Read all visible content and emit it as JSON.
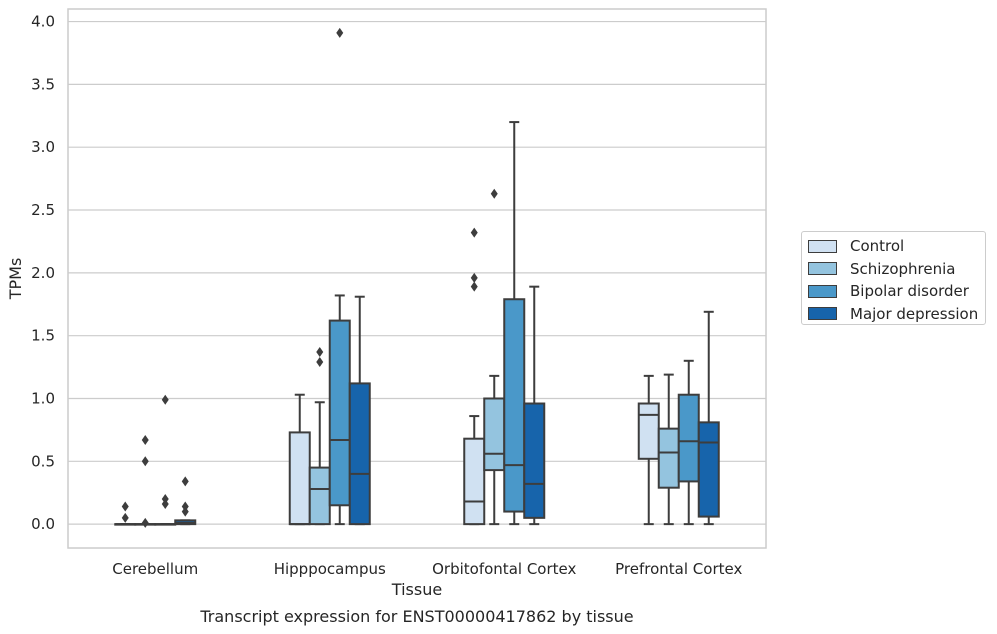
{
  "chart_data": {
    "type": "box",
    "caption": "Transcript expression for ENST00000417862 by tissue",
    "xlabel": "Tissue",
    "ylabel": "TPMs",
    "ylim": [
      -0.19,
      4.1
    ],
    "yticks": [
      "0.0",
      "0.5",
      "1.0",
      "1.5",
      "2.0",
      "2.5",
      "3.0",
      "3.5",
      "4.0"
    ],
    "categories": [
      "Cerebellum",
      "Hipppocampus",
      "Orbitofontal Cortex",
      "Prefrontal Cortex"
    ],
    "grid": true,
    "legend_position": "right",
    "series": [
      {
        "name": "Control",
        "color": "#d0e1f2",
        "boxes": [
          {
            "q1": 0,
            "median": 0,
            "q3": 0,
            "whisker_low": 0,
            "whisker_high": 0,
            "outliers": [
              0.14,
              0.05
            ]
          },
          {
            "q1": 0,
            "median": 0,
            "q3": 0.73,
            "whisker_low": 0,
            "whisker_high": 1.03,
            "outliers": []
          },
          {
            "q1": 0,
            "median": 0.18,
            "q3": 0.68,
            "whisker_low": 0,
            "whisker_high": 0.86,
            "outliers": [
              1.89,
              1.96,
              2.32
            ]
          },
          {
            "q1": 0.52,
            "median": 0.87,
            "q3": 0.96,
            "whisker_low": 0,
            "whisker_high": 1.18,
            "outliers": []
          }
        ]
      },
      {
        "name": "Schizophrenia",
        "color": "#94c4df",
        "boxes": [
          {
            "q1": 0,
            "median": 0,
            "q3": 0,
            "whisker_low": 0,
            "whisker_high": 0,
            "outliers": [
              0.67,
              0.5,
              0.01
            ]
          },
          {
            "q1": 0,
            "median": 0.28,
            "q3": 0.45,
            "whisker_low": 0,
            "whisker_high": 0.97,
            "outliers": [
              1.29,
              1.37
            ]
          },
          {
            "q1": 0.43,
            "median": 0.56,
            "q3": 1.0,
            "whisker_low": 0,
            "whisker_high": 1.18,
            "outliers": [
              2.63
            ]
          },
          {
            "q1": 0.29,
            "median": 0.57,
            "q3": 0.76,
            "whisker_low": 0,
            "whisker_high": 1.19,
            "outliers": []
          }
        ]
      },
      {
        "name": "Bipolar disorder",
        "color": "#4a98c9",
        "boxes": [
          {
            "q1": 0,
            "median": 0,
            "q3": 0,
            "whisker_low": 0,
            "whisker_high": 0,
            "outliers": [
              0.99,
              0.2,
              0.16
            ]
          },
          {
            "q1": 0.15,
            "median": 0.67,
            "q3": 1.62,
            "whisker_low": 0,
            "whisker_high": 1.82,
            "outliers": [
              3.91
            ]
          },
          {
            "q1": 0.1,
            "median": 0.47,
            "q3": 1.79,
            "whisker_low": 0,
            "whisker_high": 3.2,
            "outliers": []
          },
          {
            "q1": 0.34,
            "median": 0.66,
            "q3": 1.03,
            "whisker_low": 0,
            "whisker_high": 1.3,
            "outliers": []
          }
        ]
      },
      {
        "name": "Major depression",
        "color": "#1764ab",
        "boxes": [
          {
            "q1": 0,
            "median": 0.01,
            "q3": 0.03,
            "whisker_low": 0,
            "whisker_high": 0.03,
            "outliers": [
              0.34,
              0.14,
              0.1
            ]
          },
          {
            "q1": 0,
            "median": 0.4,
            "q3": 1.12,
            "whisker_low": 0,
            "whisker_high": 1.81,
            "outliers": []
          },
          {
            "q1": 0.05,
            "median": 0.32,
            "q3": 0.96,
            "whisker_low": 0,
            "whisker_high": 1.89,
            "outliers": []
          },
          {
            "q1": 0.06,
            "median": 0.65,
            "q3": 0.81,
            "whisker_low": 0,
            "whisker_high": 1.69,
            "outliers": []
          }
        ]
      }
    ]
  }
}
